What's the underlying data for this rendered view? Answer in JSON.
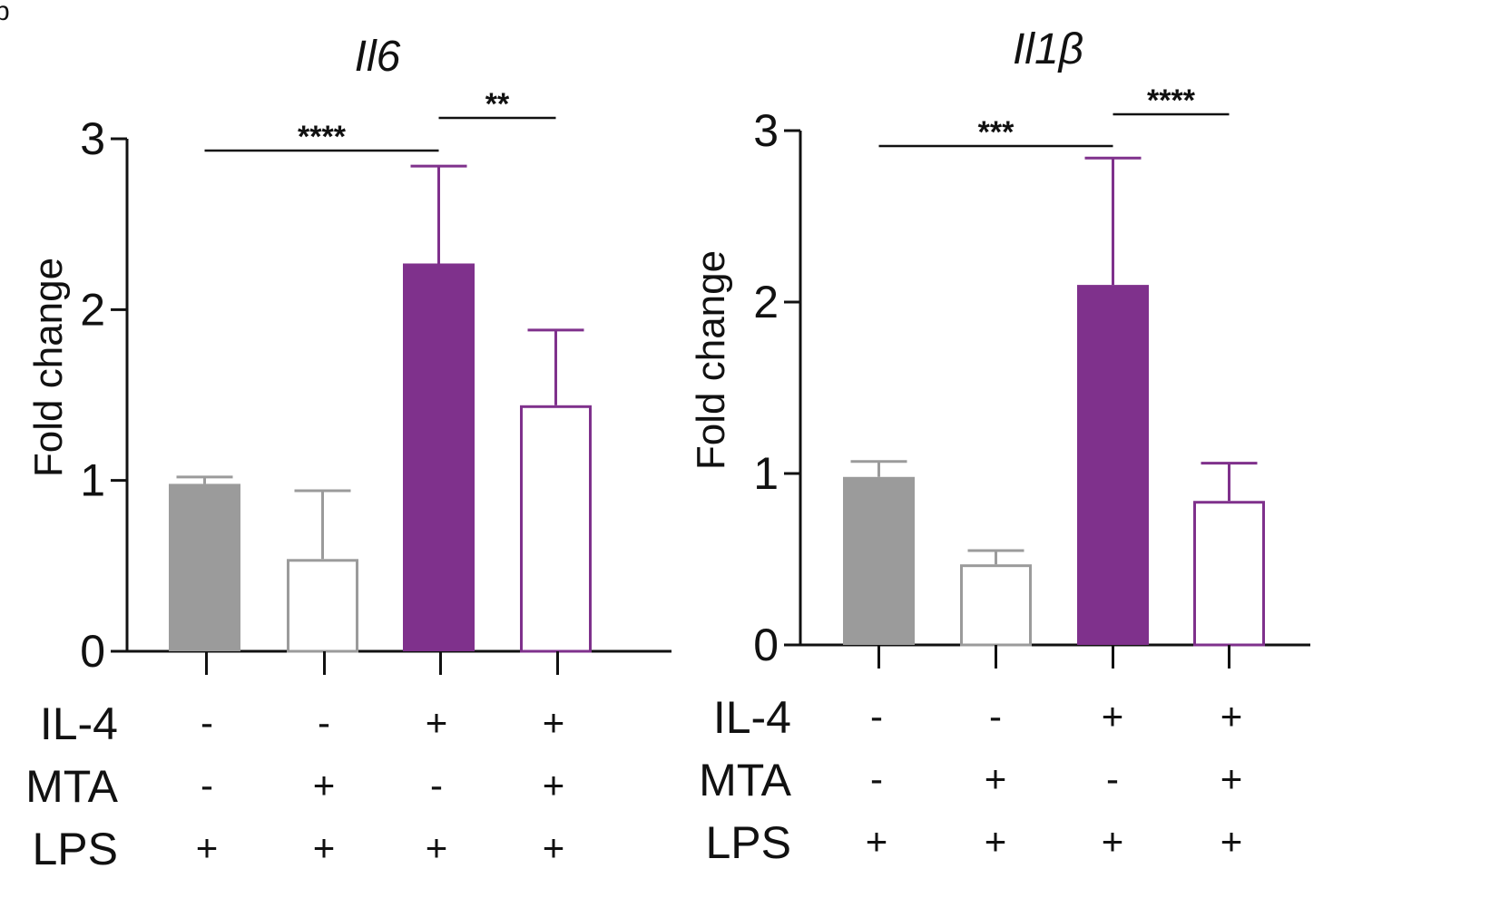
{
  "panel_label": "b",
  "conditions": {
    "labels": [
      "IL-4",
      "MTA",
      "LPS"
    ],
    "values": [
      [
        "-",
        "-",
        "+",
        "+"
      ],
      [
        "-",
        "+",
        "-",
        "+"
      ],
      [
        "+",
        "+",
        "+",
        "+"
      ]
    ]
  },
  "chart_data": [
    {
      "type": "bar",
      "title": "Il6",
      "xlabel": "",
      "ylabel": "Fold change",
      "ylim": [
        0,
        3
      ],
      "yticks": [
        "0",
        "1",
        "2",
        "3"
      ],
      "categories": [
        "IL-4 - / MTA - / LPS +",
        "IL-4 - / MTA + / LPS +",
        "IL-4 + / MTA - / LPS +",
        "IL-4 + / MTA + / LPS +"
      ],
      "values": [
        0.98,
        0.54,
        2.27,
        1.44
      ],
      "errors": [
        0.04,
        0.4,
        0.57,
        0.44
      ],
      "styles": [
        "filled-gray",
        "open-gray",
        "filled-purple",
        "open-purple"
      ],
      "significance": [
        {
          "from": 0,
          "to": 2,
          "label": "****"
        },
        {
          "from": 2,
          "to": 3,
          "label": "**"
        }
      ]
    },
    {
      "type": "bar",
      "title": "Il1β",
      "xlabel": "",
      "ylabel": "Fold change",
      "ylim": [
        0,
        3
      ],
      "yticks": [
        "0",
        "1",
        "2",
        "3"
      ],
      "categories": [
        "IL-4 - / MTA - / LPS +",
        "IL-4 - / MTA + / LPS +",
        "IL-4 + / MTA - / LPS +",
        "IL-4 + / MTA + / LPS +"
      ],
      "values": [
        0.98,
        0.47,
        2.1,
        0.84
      ],
      "errors": [
        0.09,
        0.08,
        0.74,
        0.22
      ],
      "styles": [
        "filled-gray",
        "open-gray",
        "filled-purple",
        "open-purple"
      ],
      "significance": [
        {
          "from": 0,
          "to": 2,
          "label": "***"
        },
        {
          "from": 2,
          "to": 3,
          "label": "****"
        }
      ]
    }
  ],
  "colors": {
    "gray": "#9b9b9b",
    "purple": "#7f318c",
    "axis": "#111111"
  }
}
